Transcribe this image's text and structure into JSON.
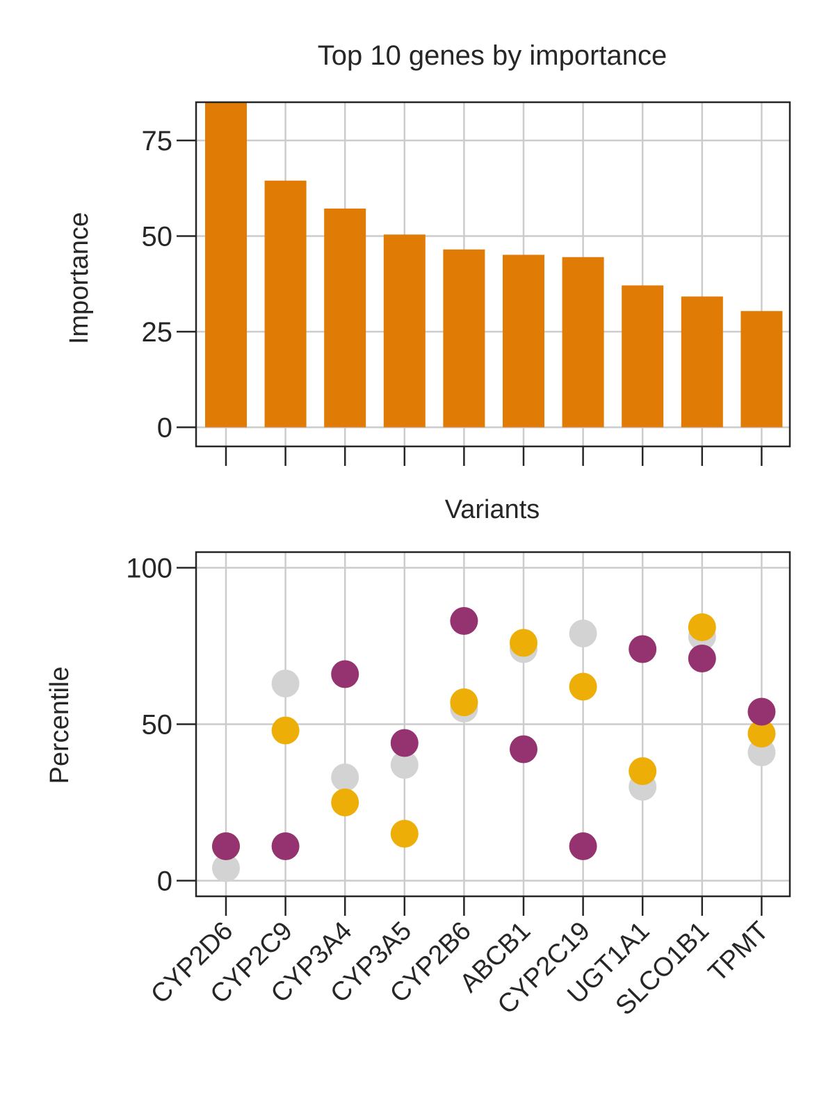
{
  "chart_data": [
    {
      "type": "bar",
      "title": "Top 10 genes by importance",
      "xlabel": "Variants",
      "ylabel": "Importance",
      "ylim": [
        -5,
        85
      ],
      "yticks": [
        "0",
        "25",
        "50",
        "75"
      ],
      "grid": true,
      "color": "#E07B05",
      "categories": [
        "CYP2D6",
        "CYP2C9",
        "CYP3A4",
        "CYP3A5",
        "CYP2B6",
        "ABCB1",
        "CYP2C19",
        "UGT1A1",
        "SLCO1B1",
        "TPMT"
      ],
      "values": [
        85,
        64.5,
        57.2,
        50.4,
        46.5,
        45.1,
        44.5,
        37.1,
        34.2,
        30.4
      ]
    },
    {
      "type": "scatter",
      "xlabel": "",
      "ylabel": "Percentile",
      "ylim": [
        -5,
        105
      ],
      "yticks": [
        "0",
        "50",
        "100"
      ],
      "grid": true,
      "categories": [
        "CYP2D6",
        "CYP2C9",
        "CYP3A4",
        "CYP3A5",
        "CYP2B6",
        "ABCB1",
        "CYP2C19",
        "UGT1A1",
        "SLCO1B1",
        "TPMT"
      ],
      "series": [
        {
          "color": "#D3D3D3",
          "values": [
            4,
            63,
            33,
            37,
            55,
            74,
            79,
            30,
            78,
            41
          ]
        },
        {
          "color": "#EDAE08",
          "values": [
            11,
            48,
            25,
            15,
            57,
            76,
            62,
            35,
            81,
            47
          ]
        },
        {
          "color": "#953370",
          "values": [
            11,
            11,
            66,
            44,
            83,
            42,
            11,
            74,
            71,
            54
          ]
        }
      ]
    }
  ]
}
